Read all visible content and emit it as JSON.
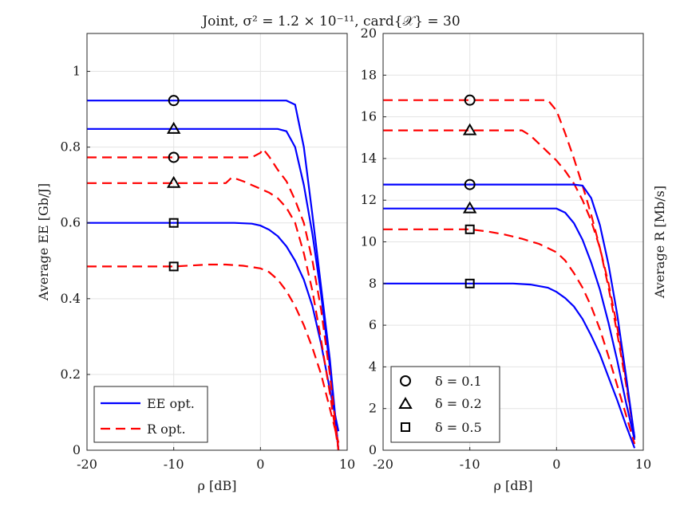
{
  "chart_data": [
    {
      "type": "line",
      "title": "Joint, σ² = 1.2 × 10⁻¹¹, card{𝒳} = 30",
      "xlabel": "ρ [dB]",
      "ylabel": "Average EE [Gb/J]",
      "xlim": [
        -20,
        10
      ],
      "ylim": [
        0,
        1.1
      ],
      "xticks": [
        -20,
        -10,
        0,
        10
      ],
      "xtick_labels": [
        "-20",
        "-10",
        "0",
        "10"
      ],
      "yticks": [
        0,
        0.2,
        0.4,
        0.6,
        0.8,
        1
      ],
      "ytick_labels": [
        "0",
        "0.2",
        "0.4",
        "0.6",
        "0.8",
        "1"
      ],
      "grid": true,
      "legend": {
        "position": "bottom-left",
        "entries": [
          {
            "label": "EE opt.",
            "color": "#0000ff",
            "style": "solid"
          },
          {
            "label": "R opt.",
            "color": "#ff0000",
            "style": "dashed"
          }
        ]
      },
      "series": [
        {
          "name": "EE opt. δ=0.1",
          "style": "solid",
          "color": "#0000ff",
          "marker": "circle",
          "x": [
            -20,
            3,
            4,
            5,
            6,
            7,
            8,
            9
          ],
          "y": [
            0.923,
            0.923,
            0.912,
            0.8,
            0.62,
            0.43,
            0.24,
            0.0
          ]
        },
        {
          "name": "EE opt. δ=0.2",
          "style": "solid",
          "color": "#0000ff",
          "marker": "triangle",
          "x": [
            -20,
            2,
            3,
            4,
            5,
            6,
            7,
            8,
            9
          ],
          "y": [
            0.848,
            0.848,
            0.842,
            0.8,
            0.7,
            0.57,
            0.41,
            0.22,
            0.0
          ]
        },
        {
          "name": "EE opt. δ=0.5",
          "style": "solid",
          "color": "#0000ff",
          "marker": "square",
          "x": [
            -20,
            -3,
            -1,
            0,
            1,
            2,
            3,
            4,
            5,
            6,
            7,
            8,
            9
          ],
          "y": [
            0.6,
            0.6,
            0.598,
            0.593,
            0.582,
            0.565,
            0.538,
            0.5,
            0.45,
            0.38,
            0.28,
            0.16,
            0.05
          ]
        },
        {
          "name": "R opt. δ=0.1",
          "style": "dashed",
          "color": "#ff0000",
          "marker": "circle",
          "x": [
            -20,
            -1,
            0,
            0.3,
            1,
            2,
            3,
            4,
            5,
            6,
            7,
            8,
            9
          ],
          "y": [
            0.773,
            0.773,
            0.785,
            0.795,
            0.775,
            0.74,
            0.71,
            0.66,
            0.6,
            0.5,
            0.37,
            0.2,
            0.0
          ]
        },
        {
          "name": "R opt. δ=0.2",
          "style": "dashed",
          "color": "#ff0000",
          "marker": "triangle",
          "x": [
            -20,
            -4,
            -3.3,
            -3,
            -2,
            -1,
            0,
            1,
            2,
            3,
            4,
            5,
            6,
            7,
            8,
            9
          ],
          "y": [
            0.705,
            0.705,
            0.72,
            0.718,
            0.71,
            0.7,
            0.69,
            0.68,
            0.665,
            0.64,
            0.6,
            0.52,
            0.42,
            0.29,
            0.15,
            0.0
          ]
        },
        {
          "name": "R opt. δ=0.5",
          "style": "dashed",
          "color": "#ff0000",
          "marker": "square",
          "x": [
            -20,
            -10,
            -6,
            -4,
            -2,
            0,
            1,
            2,
            3,
            4,
            5,
            6,
            7,
            8,
            9
          ],
          "y": [
            0.485,
            0.485,
            0.49,
            0.49,
            0.487,
            0.48,
            0.47,
            0.45,
            0.42,
            0.38,
            0.33,
            0.27,
            0.2,
            0.11,
            0.02
          ]
        }
      ],
      "markers": [
        {
          "x": -10,
          "y": 0.923,
          "shape": "circle"
        },
        {
          "x": -10,
          "y": 0.848,
          "shape": "triangle"
        },
        {
          "x": -10,
          "y": 0.773,
          "shape": "circle"
        },
        {
          "x": -10,
          "y": 0.705,
          "shape": "triangle"
        },
        {
          "x": -10,
          "y": 0.6,
          "shape": "square"
        },
        {
          "x": -10,
          "y": 0.485,
          "shape": "square"
        }
      ]
    },
    {
      "type": "line",
      "xlabel": "ρ [dB]",
      "ylabel": "Average R [Mb/s]",
      "xlim": [
        -20,
        10
      ],
      "ylim": [
        0,
        20
      ],
      "xticks": [
        -20,
        -10,
        0,
        10
      ],
      "xtick_labels": [
        "-20",
        "-10",
        "0",
        "10"
      ],
      "yticks": [
        0,
        2,
        4,
        6,
        8,
        10,
        12,
        14,
        16,
        18,
        20
      ],
      "ytick_labels": [
        "0",
        "2",
        "4",
        "6",
        "8",
        "10",
        "12",
        "14",
        "16",
        "18",
        "20"
      ],
      "grid": true,
      "legend": {
        "position": "bottom-left",
        "entries": [
          {
            "label": "δ = 0.1",
            "marker": "circle"
          },
          {
            "label": "δ = 0.2",
            "marker": "triangle"
          },
          {
            "label": "δ = 0.5",
            "marker": "square"
          }
        ]
      },
      "series": [
        {
          "name": "R opt. δ=0.1",
          "style": "dashed",
          "color": "#ff0000",
          "marker": "circle",
          "x": [
            -20,
            -1,
            0,
            1,
            2,
            3,
            4,
            5,
            6,
            7,
            8,
            9
          ],
          "y": [
            16.8,
            16.8,
            16.3,
            15.2,
            14.0,
            12.7,
            11.3,
            9.7,
            7.8,
            5.6,
            3.2,
            0.6
          ]
        },
        {
          "name": "R opt. δ=0.2",
          "style": "dashed",
          "color": "#ff0000",
          "marker": "triangle",
          "x": [
            -20,
            -4,
            -3,
            -2,
            -1,
            0,
            1,
            2,
            3,
            4,
            5,
            6,
            7,
            8,
            9
          ],
          "y": [
            15.35,
            15.35,
            15.1,
            14.7,
            14.3,
            13.9,
            13.4,
            12.8,
            12.0,
            11.0,
            9.7,
            8.0,
            5.9,
            3.4,
            0.6
          ]
        },
        {
          "name": "EE opt. δ=0.1",
          "style": "solid",
          "color": "#0000ff",
          "marker": "circle",
          "x": [
            -20,
            2,
            3,
            4,
            5,
            6,
            7,
            8,
            9
          ],
          "y": [
            12.75,
            12.75,
            12.7,
            12.1,
            10.8,
            8.9,
            6.5,
            3.6,
            0.6
          ]
        },
        {
          "name": "EE opt. δ=0.2",
          "style": "solid",
          "color": "#0000ff",
          "marker": "triangle",
          "x": [
            -20,
            0,
            1,
            2,
            3,
            4,
            5,
            6,
            7,
            8,
            9
          ],
          "y": [
            11.6,
            11.6,
            11.4,
            10.9,
            10.1,
            9.0,
            7.7,
            6.1,
            4.3,
            2.3,
            0.5
          ]
        },
        {
          "name": "R opt. δ=0.5",
          "style": "dashed",
          "color": "#ff0000",
          "marker": "square",
          "x": [
            -20,
            -10,
            -8,
            -6,
            -4,
            -2,
            0,
            1,
            2,
            3,
            4,
            5,
            6,
            7,
            8,
            9
          ],
          "y": [
            10.6,
            10.6,
            10.5,
            10.35,
            10.15,
            9.9,
            9.5,
            9.1,
            8.5,
            7.8,
            6.9,
            5.8,
            4.5,
            3.1,
            1.7,
            0.3
          ]
        },
        {
          "name": "EE opt. δ=0.5",
          "style": "solid",
          "color": "#0000ff",
          "marker": "square",
          "x": [
            -20,
            -5,
            -3,
            -1,
            0,
            1,
            2,
            3,
            4,
            5,
            6,
            7,
            8,
            9
          ],
          "y": [
            8.0,
            8.0,
            7.95,
            7.8,
            7.6,
            7.3,
            6.9,
            6.3,
            5.5,
            4.6,
            3.5,
            2.4,
            1.2,
            0.1
          ]
        }
      ],
      "markers": [
        {
          "x": -10,
          "y": 16.8,
          "shape": "circle"
        },
        {
          "x": -10,
          "y": 15.35,
          "shape": "triangle"
        },
        {
          "x": -10,
          "y": 12.75,
          "shape": "circle"
        },
        {
          "x": -10,
          "y": 11.6,
          "shape": "triangle"
        },
        {
          "x": -10,
          "y": 10.6,
          "shape": "square"
        },
        {
          "x": -10,
          "y": 8.0,
          "shape": "square"
        }
      ]
    }
  ]
}
